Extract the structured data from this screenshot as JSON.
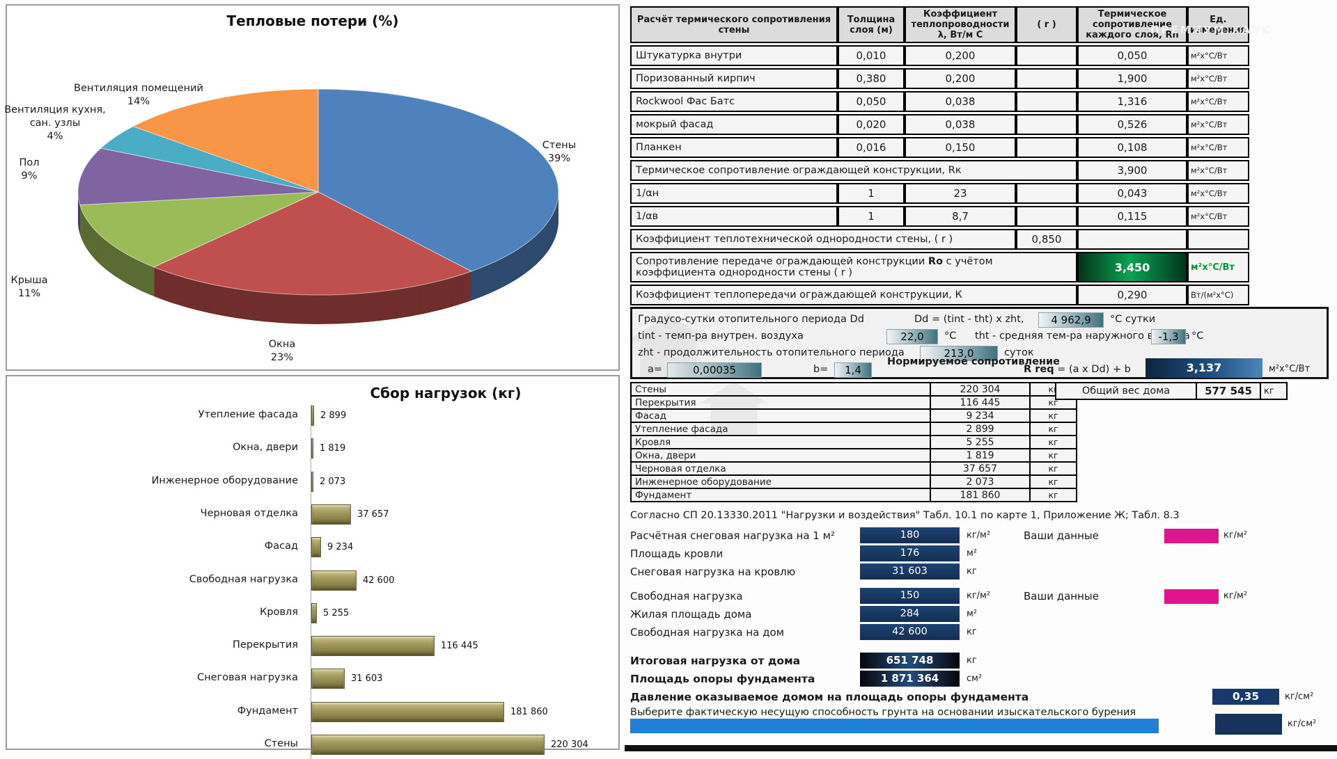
{
  "watermark": {
    "text": "ПРЕМИУМ ХАУС"
  },
  "chart_data": [
    {
      "type": "pie",
      "title": "Тепловые потери (%)",
      "labels": [
        "Стены",
        "Окна",
        "Крыша",
        "Пол",
        "Вентиляция кухня,\nсан. узлы",
        "Вентиляция помещений"
      ],
      "values": [
        39,
        23,
        11,
        9,
        4,
        14
      ],
      "percent_labels": [
        "39%",
        "23%",
        "11%",
        "9%",
        "4%",
        "14%"
      ],
      "colors": [
        "#4f81bd",
        "#c0504d",
        "#9bbb59",
        "#8064a2",
        "#4bacc6",
        "#f79646"
      ],
      "style": "3d-pie",
      "legend_position": "labels-around-slices"
    },
    {
      "type": "bar",
      "title": "Сбор нагрузок (кг)",
      "orientation": "horizontal",
      "categories": [
        "Утепление фасада",
        "Окна, двери",
        "Инженерное оборудование",
        "Черновая отделка",
        "Фасад",
        "Свободная нагрузка",
        "Кровля",
        "Перекрытия",
        "Снеговая нагрузка",
        "Фундамент",
        "Стены"
      ],
      "values": [
        2899,
        1819,
        2073,
        37657,
        9234,
        42600,
        5255,
        116445,
        31603,
        181860,
        220304
      ],
      "value_labels": [
        "2 899",
        "1 819",
        "2 073",
        "37 657",
        "9 234",
        "42 600",
        "5 255",
        "116 445",
        "31 603",
        "181 860",
        "220 304"
      ],
      "bar_color": "#9a9155",
      "xlim": [
        0,
        230000
      ],
      "grid": false
    }
  ],
  "thermal_table": {
    "headers": [
      "Расчёт термического сопротивления стены",
      "Толщина слоя (м)",
      "Коэффициент теплопроводности λ, Вт/м С",
      "( r )",
      "Термическое сопротивление каждого слоя, Rn",
      "Ед. измерения"
    ],
    "rows": [
      {
        "kind": "layer",
        "name": "Штукатурка внутри",
        "thickness": "0,010",
        "lambda": "0,200",
        "r": "",
        "rn": "0,050",
        "unit": "м²х°С/Вт"
      },
      {
        "kind": "layer",
        "name": "Поризованный кирпич",
        "thickness": "0,380",
        "lambda": "0,200",
        "r": "",
        "rn": "1,900",
        "unit": "м²х°С/Вт"
      },
      {
        "kind": "layer",
        "name": "Rockwool Фас Батс",
        "thickness": "0,050",
        "lambda": "0,038",
        "r": "",
        "rn": "1,316",
        "unit": "м²х°С/Вт"
      },
      {
        "kind": "layer",
        "name": "мокрый фасад",
        "thickness": "0,020",
        "lambda": "0,038",
        "r": "",
        "rn": "0,526",
        "unit": "м²х°С/Вт"
      },
      {
        "kind": "layer",
        "name": "Планкен",
        "thickness": "0,016",
        "lambda": "0,150",
        "r": "",
        "rn": "0,108",
        "unit": "м²х°С/Вт"
      },
      {
        "kind": "merge4",
        "name": "Термическое сопротивление ограждающей конструкции, Rк",
        "rn": "3,900",
        "unit": "м²х°С/Вт"
      },
      {
        "kind": "layer",
        "name": "1/αн",
        "thickness": "1",
        "lambda": "23",
        "r": "",
        "rn": "0,043",
        "unit": "м²х°С/Вт"
      },
      {
        "kind": "layer",
        "name": "1/αв",
        "thickness": "1",
        "lambda": "8,7",
        "r": "",
        "rn": "0,115",
        "unit": "м²х°С/Вт"
      },
      {
        "kind": "merge3",
        "name": "Коэффициент теплотехнической однородности стены, ( r )",
        "r": "0,850"
      },
      {
        "kind": "merge4",
        "name": "Сопротивление передаче ограждающей конструкции **Ro** с учётом коэффициента однородности стены ( r )",
        "rn": "3,450",
        "unit": "м²х°С/Вт",
        "highlight": true
      },
      {
        "kind": "merge4",
        "name": "Коэффициент теплопередачи ограждающей конструкции, К",
        "rn": "0,290",
        "unit": "Вт/(м²х°С)"
      }
    ]
  },
  "degree_days": {
    "title": "Градусо-сутки отопительного периода Dd",
    "dd_formula": "Dd = (tint - tht) x zht,",
    "dd_value": "4 962,9",
    "dd_unit": "°С сутки",
    "tint_label": "tint - темп-ра внутрен. воздуха",
    "tint_value": "22,0",
    "tint_unit": "°С",
    "tht_label": "tht - средняя тем-ра наружного воздуха",
    "tht_value": "-1,3",
    "tht_unit": "°С",
    "zht_label": "zht - продолжительность отопительного периода",
    "zht_value": "213,0",
    "zht_unit": "суток",
    "a_label": "a=",
    "a_value": "0,00035",
    "b_label": "b=",
    "b_value": "1,4",
    "norm_label": "Нормируемое сопротивление",
    "rreq_formula": "**R req** = (a x Dd) + b",
    "rreq_value": "3,137",
    "rreq_unit": "м²х°С/Вт"
  },
  "weights": {
    "rows": [
      [
        "Стены",
        "220 304"
      ],
      [
        "Перекрытия",
        "116 445"
      ],
      [
        "Фасад",
        "9 234"
      ],
      [
        "Утепление фасада",
        "2 899"
      ],
      [
        "Кровля",
        "5 255"
      ],
      [
        "Окна, двери",
        "1 819"
      ],
      [
        "Черновая отделка",
        "37 657"
      ],
      [
        "Инженерное оборудование",
        "2 073"
      ],
      [
        "Фундамент",
        "181 860"
      ]
    ],
    "unit": "кг",
    "total_label": "Общий вес дома",
    "total_value": "577 545",
    "total_unit": "кг"
  },
  "loads": {
    "note": "Согласно СП 20.13330.2011 \"Нагрузки и воздействия\"  Табл. 10.1 по карте 1, Приложение Ж; Табл. 8.3",
    "your_data_label": "Ваши данные",
    "rows": [
      {
        "label": "Расчётная снеговая нагрузка на 1 м²",
        "value": "180",
        "unit": "кг/м²",
        "your_unit": "кг/м²"
      },
      {
        "label": "Площадь кровли",
        "value": "176",
        "unit": "м²"
      },
      {
        "label": "Снеговая нагрузка на кровлю",
        "value": "31 603",
        "unit": "кг"
      },
      {
        "label": "Свободная нагрузка",
        "value": "150",
        "unit": "кг/м²",
        "your_unit": "кг/м²"
      },
      {
        "label": "Жилая площадь дома",
        "value": "284",
        "unit": "м²"
      },
      {
        "label": "Свободная нагрузка на дом",
        "value": "42 600",
        "unit": "кг"
      },
      {
        "label": "Итоговая нагрузка от дома",
        "value": "651 748",
        "unit": "кг",
        "bold": true
      },
      {
        "label": "Площадь опоры фундамента",
        "value": "1 871 364",
        "unit": "см²",
        "bold": true
      },
      {
        "label": "Давление оказываемое домом на площадь опоры фундамента",
        "value": "0,35",
        "unit": "кг/см²",
        "bold": true,
        "far": true
      }
    ],
    "select_note": "Выберите фактическую несущую способность грунта на основании изыскательского бурения",
    "result_unit": "кг/см²"
  }
}
